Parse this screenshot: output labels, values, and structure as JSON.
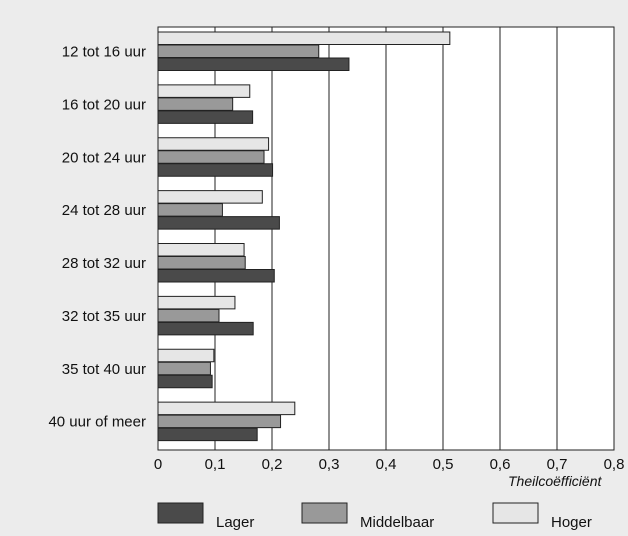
{
  "chart_data": {
    "type": "bar",
    "orientation": "horizontal",
    "title": "",
    "categories": [
      "12 tot 16 uur",
      "16 tot 20 uur",
      "20 tot 24 uur",
      "24 tot 28 uur",
      "28 tot 32 uur",
      "32 tot 35 uur",
      "35 tot 40 uur",
      "40 uur of meer"
    ],
    "series": [
      {
        "name": "Hoger",
        "color": "#e6e6e6",
        "values": [
          0.512,
          0.161,
          0.194,
          0.183,
          0.151,
          0.135,
          0.098,
          0.24
        ]
      },
      {
        "name": "Middelbaar",
        "color": "#999999",
        "values": [
          0.282,
          0.131,
          0.186,
          0.113,
          0.153,
          0.107,
          0.092,
          0.215
        ]
      },
      {
        "name": "Lager",
        "color": "#4a4a4a",
        "values": [
          0.335,
          0.166,
          0.201,
          0.213,
          0.204,
          0.167,
          0.095,
          0.174
        ]
      }
    ],
    "xlabel": "Theilcoëfficiënt",
    "xlim": [
      0,
      0.8
    ],
    "xticks": [
      0,
      0.1,
      0.2,
      0.3,
      0.4,
      0.5,
      0.6,
      0.7,
      0.8
    ],
    "xtick_labels": [
      "0",
      "0,1",
      "0,2",
      "0,3",
      "0,4",
      "0,5",
      "0,6",
      "0,7",
      "0,8"
    ],
    "grid": "vertical",
    "legend": {
      "position": "bottom",
      "items": [
        {
          "label": "Lager",
          "color": "#4a4a4a"
        },
        {
          "label": "Middelbaar",
          "color": "#999999"
        },
        {
          "label": "Hoger",
          "color": "#e6e6e6"
        }
      ]
    }
  }
}
